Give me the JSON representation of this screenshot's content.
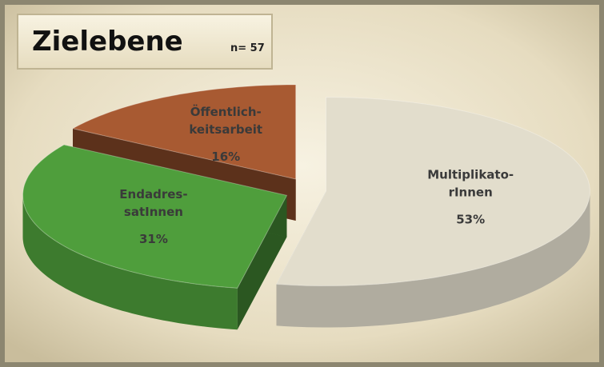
{
  "chart_data": {
    "type": "pie3d",
    "title": "Zielebene",
    "subtitle": "n= 57",
    "categories": [
      [
        "Multiplikato-",
        "rInnen"
      ],
      [
        "Endadres-",
        "satInnen"
      ],
      [
        "Öffentlich-",
        "keitsarbeit"
      ]
    ],
    "values": [
      53,
      31,
      16
    ],
    "value_labels": [
      "53%",
      "31%",
      "16%"
    ],
    "colors": [
      "#e2ddcc",
      "#4f9e3c",
      "#a85a32"
    ]
  }
}
